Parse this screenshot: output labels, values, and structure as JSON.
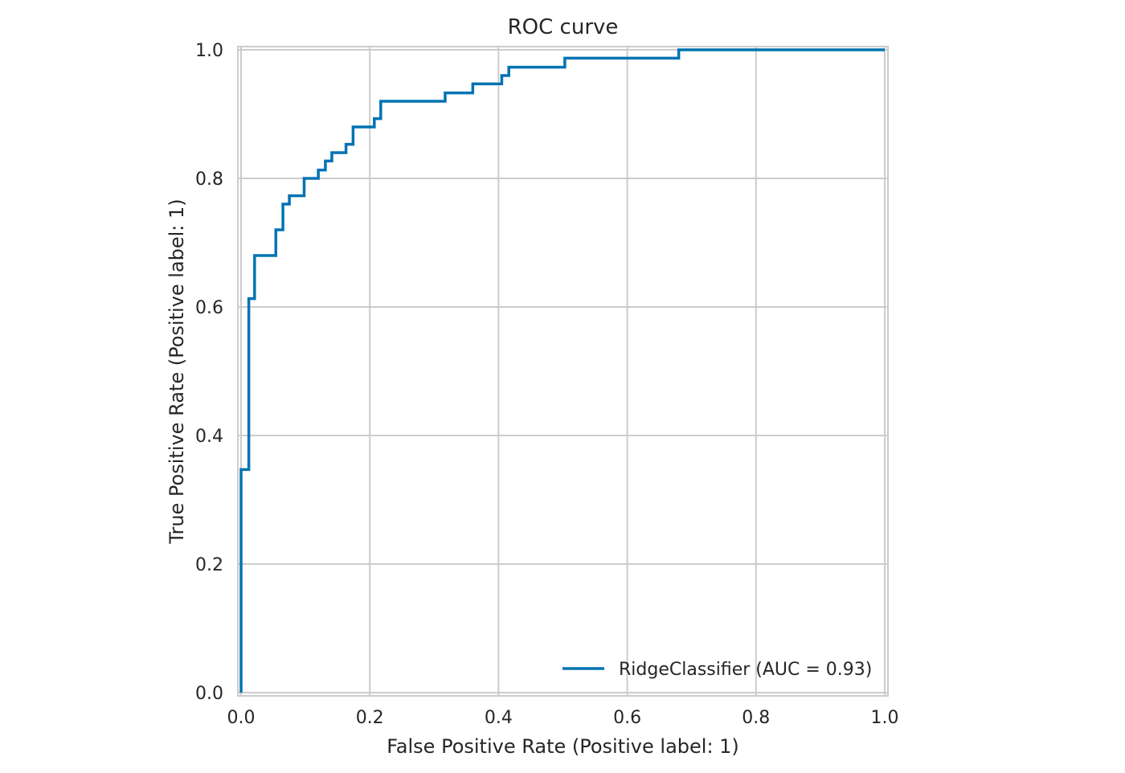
{
  "chart_data": {
    "type": "line",
    "title": "ROC curve",
    "xlabel": "False Positive Rate (Positive label: 1)",
    "ylabel": "True Positive Rate (Positive label: 1)",
    "xlim": [
      -0.005,
      1.005
    ],
    "ylim": [
      -0.005,
      1.005
    ],
    "xticks": [
      "0.0",
      "0.2",
      "0.4",
      "0.6",
      "0.8",
      "1.0"
    ],
    "yticks": [
      "0.0",
      "0.2",
      "0.4",
      "0.6",
      "0.8",
      "1.0"
    ],
    "grid": true,
    "legend": {
      "position": "lower-right",
      "label": "RidgeClassifier (AUC = 0.93)"
    },
    "series": [
      {
        "name": "RidgeClassifier (AUC = 0.93)",
        "color": "#0173b2",
        "step": true,
        "points": [
          [
            0.0,
            0.0
          ],
          [
            0.0,
            0.347
          ],
          [
            0.012,
            0.347
          ],
          [
            0.012,
            0.613
          ],
          [
            0.021,
            0.613
          ],
          [
            0.021,
            0.68
          ],
          [
            0.054,
            0.68
          ],
          [
            0.054,
            0.72
          ],
          [
            0.065,
            0.72
          ],
          [
            0.065,
            0.76
          ],
          [
            0.075,
            0.76
          ],
          [
            0.075,
            0.773
          ],
          [
            0.098,
            0.773
          ],
          [
            0.098,
            0.8
          ],
          [
            0.12,
            0.8
          ],
          [
            0.12,
            0.813
          ],
          [
            0.131,
            0.813
          ],
          [
            0.131,
            0.827
          ],
          [
            0.141,
            0.827
          ],
          [
            0.141,
            0.84
          ],
          [
            0.163,
            0.84
          ],
          [
            0.163,
            0.853
          ],
          [
            0.174,
            0.853
          ],
          [
            0.174,
            0.88
          ],
          [
            0.207,
            0.88
          ],
          [
            0.207,
            0.893
          ],
          [
            0.217,
            0.893
          ],
          [
            0.217,
            0.92
          ],
          [
            0.317,
            0.92
          ],
          [
            0.317,
            0.933
          ],
          [
            0.36,
            0.933
          ],
          [
            0.36,
            0.947
          ],
          [
            0.405,
            0.947
          ],
          [
            0.405,
            0.96
          ],
          [
            0.416,
            0.96
          ],
          [
            0.416,
            0.973
          ],
          [
            0.503,
            0.973
          ],
          [
            0.503,
            0.987
          ],
          [
            0.68,
            0.987
          ],
          [
            0.68,
            1.0
          ],
          [
            1.0,
            1.0
          ]
        ]
      }
    ]
  }
}
